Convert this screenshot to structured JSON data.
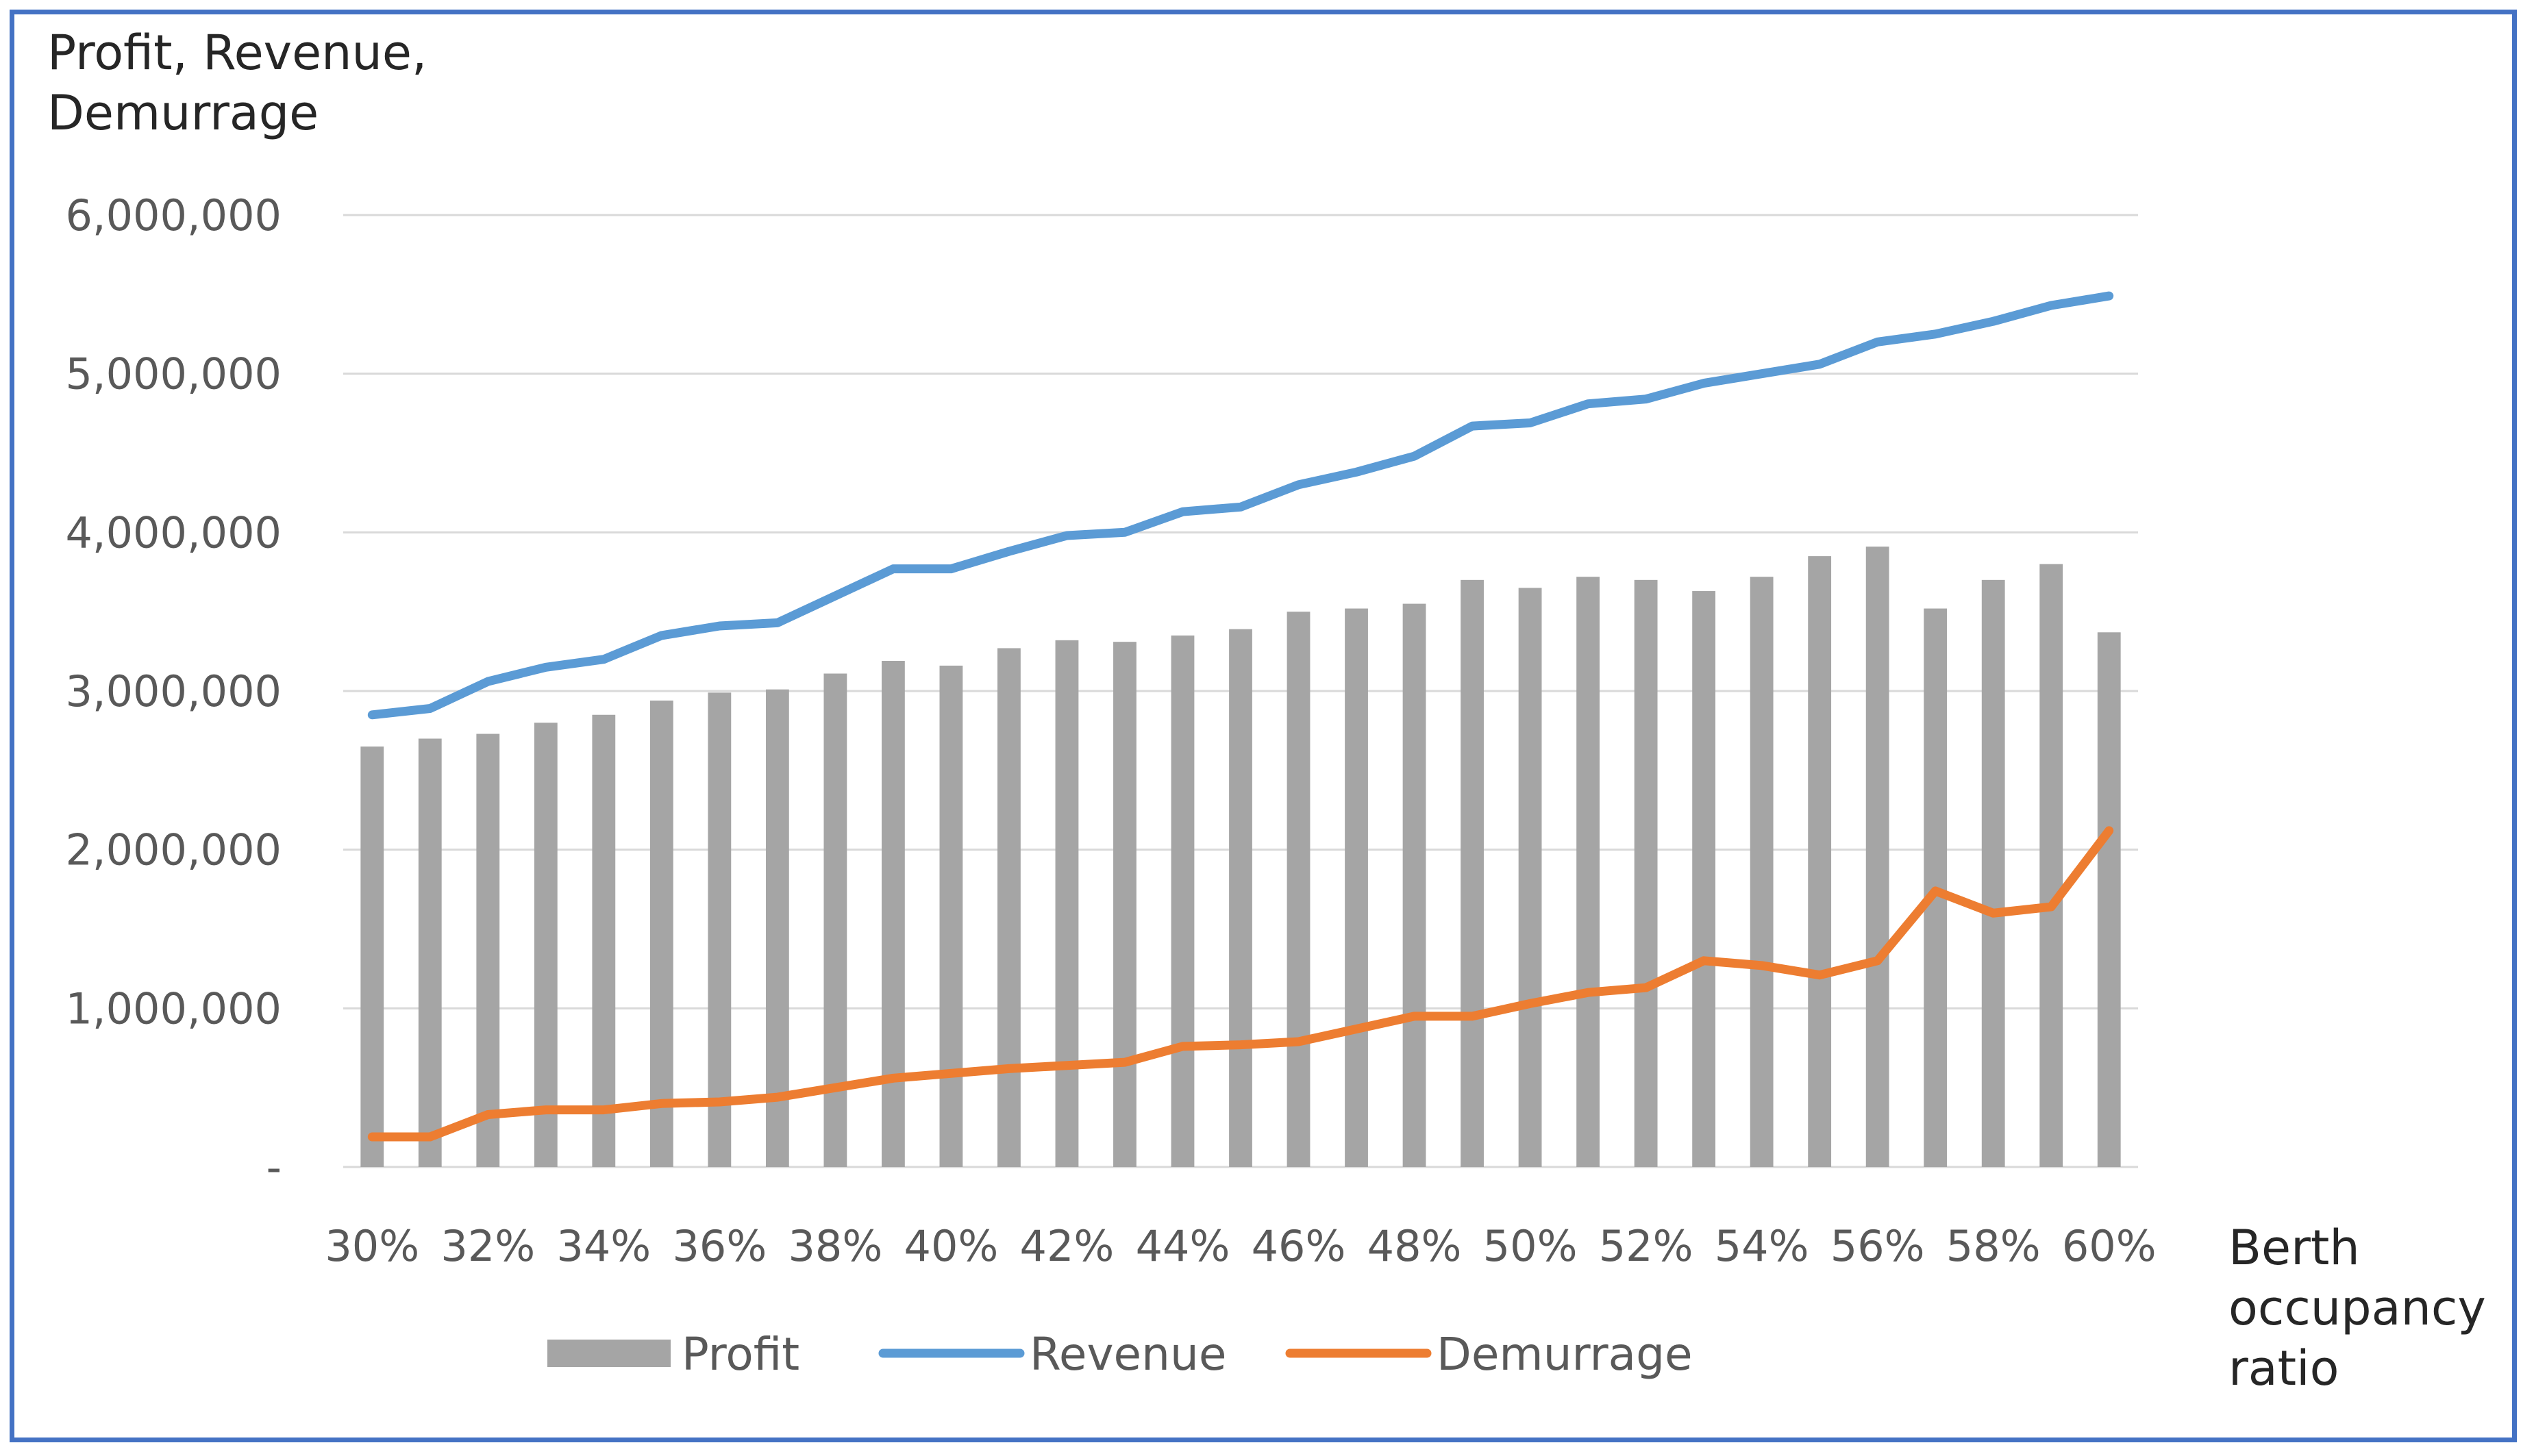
{
  "chart_data": {
    "type": "bar",
    "title": "",
    "ylabel_lines": [
      "Profit, Revenue,",
      "Demurrage"
    ],
    "xlabel_lines": [
      "Berth",
      "occupancy",
      "ratio"
    ],
    "ylim": [
      0,
      6000000
    ],
    "yticks": [
      0,
      1000000,
      2000000,
      3000000,
      4000000,
      5000000,
      6000000
    ],
    "ytick_labels": [
      "-",
      "1,000,000",
      "2,000,000",
      "3,000,000",
      "4,000,000",
      "5,000,000",
      "6,000,000"
    ],
    "grid": true,
    "categories": [
      "30%",
      "31%",
      "32%",
      "33%",
      "34%",
      "35%",
      "36%",
      "37%",
      "38%",
      "39%",
      "40%",
      "41%",
      "42%",
      "43%",
      "44%",
      "45%",
      "46%",
      "47%",
      "48%",
      "49%",
      "50%",
      "51%",
      "52%",
      "53%",
      "54%",
      "55%",
      "56%",
      "57%",
      "58%",
      "59%",
      "60%"
    ],
    "xtick_labels": [
      "30%",
      "32%",
      "34%",
      "36%",
      "38%",
      "40%",
      "42%",
      "44%",
      "46%",
      "48%",
      "50%",
      "52%",
      "54%",
      "56%",
      "58%",
      "60%"
    ],
    "legend_position": "bottom",
    "series": [
      {
        "name": "Profit",
        "type": "bar",
        "color": "#a5a5a5",
        "values": [
          2650000,
          2700000,
          2730000,
          2800000,
          2850000,
          2940000,
          2990000,
          3010000,
          3110000,
          3190000,
          3160000,
          3270000,
          3320000,
          3310000,
          3350000,
          3390000,
          3500000,
          3520000,
          3550000,
          3700000,
          3650000,
          3720000,
          3700000,
          3630000,
          3720000,
          3850000,
          3910000,
          3520000,
          3700000,
          3800000,
          3370000
        ]
      },
      {
        "name": "Revenue",
        "type": "line",
        "color": "#5b9bd5",
        "values": [
          2850000,
          2890000,
          3060000,
          3150000,
          3200000,
          3350000,
          3410000,
          3430000,
          3600000,
          3770000,
          3770000,
          3880000,
          3980000,
          4000000,
          4130000,
          4160000,
          4300000,
          4380000,
          4480000,
          4670000,
          4690000,
          4810000,
          4840000,
          4940000,
          5000000,
          5060000,
          5200000,
          5250000,
          5330000,
          5430000,
          5490000
        ]
      },
      {
        "name": "Demurrage",
        "type": "line",
        "color": "#ed7d31",
        "values": [
          190000,
          190000,
          330000,
          360000,
          360000,
          400000,
          410000,
          440000,
          500000,
          560000,
          590000,
          620000,
          640000,
          660000,
          760000,
          770000,
          790000,
          870000,
          950000,
          950000,
          1030000,
          1100000,
          1130000,
          1300000,
          1270000,
          1210000,
          1300000,
          1740000,
          1600000,
          1640000,
          2120000
        ]
      }
    ]
  }
}
